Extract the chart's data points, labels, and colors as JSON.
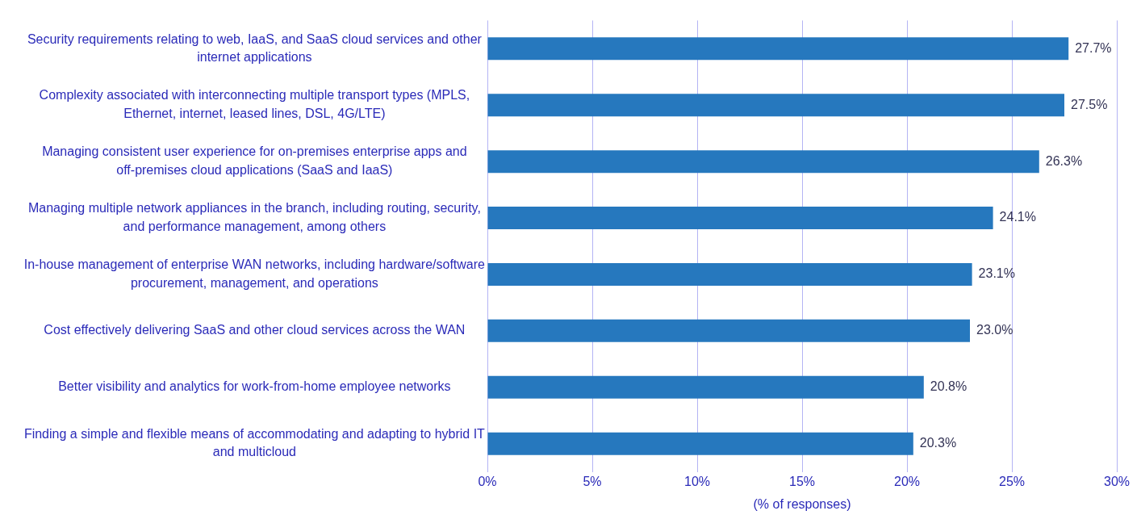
{
  "chart_data": {
    "type": "bar",
    "orientation": "horizontal",
    "categories": [
      "Security requirements relating to web, IaaS, and SaaS cloud services and other internet applications",
      "Complexity associated with interconnecting multiple transport types (MPLS, Ethernet, internet, leased lines, DSL, 4G/LTE)",
      "Managing consistent user experience for on-premises enterprise apps and off-premises cloud applications (SaaS and IaaS)",
      "Managing multiple network appliances in the branch, including routing, security, and performance management, among others",
      "In-house management of enterprise WAN networks, including hardware/software procurement, management, and operations",
      "Cost effectively delivering SaaS and other cloud services across the WAN",
      "Better visibility and analytics for work-from-home employee networks",
      "Finding a simple and flexible means of accommodating and adapting to hybrid IT and multicloud"
    ],
    "values": [
      27.7,
      27.5,
      26.3,
      24.1,
      23.1,
      23.0,
      20.8,
      20.3
    ],
    "value_labels": [
      "27.7%",
      "27.5%",
      "26.3%",
      "24.1%",
      "23.1%",
      "23.0%",
      "20.8%",
      "20.3%"
    ],
    "color": "#2678be",
    "xlabel": "(% of responses)",
    "xlim": [
      0,
      30
    ],
    "xticks": [
      {
        "value": 0,
        "label": "0%"
      },
      {
        "value": 5,
        "label": "5%"
      },
      {
        "value": 10,
        "label": "10%"
      },
      {
        "value": 15,
        "label": "15%"
      },
      {
        "value": 20,
        "label": "20%"
      },
      {
        "value": 25,
        "label": "25%"
      },
      {
        "value": 30,
        "label": "30%"
      }
    ],
    "grid": "x",
    "legend": false
  }
}
